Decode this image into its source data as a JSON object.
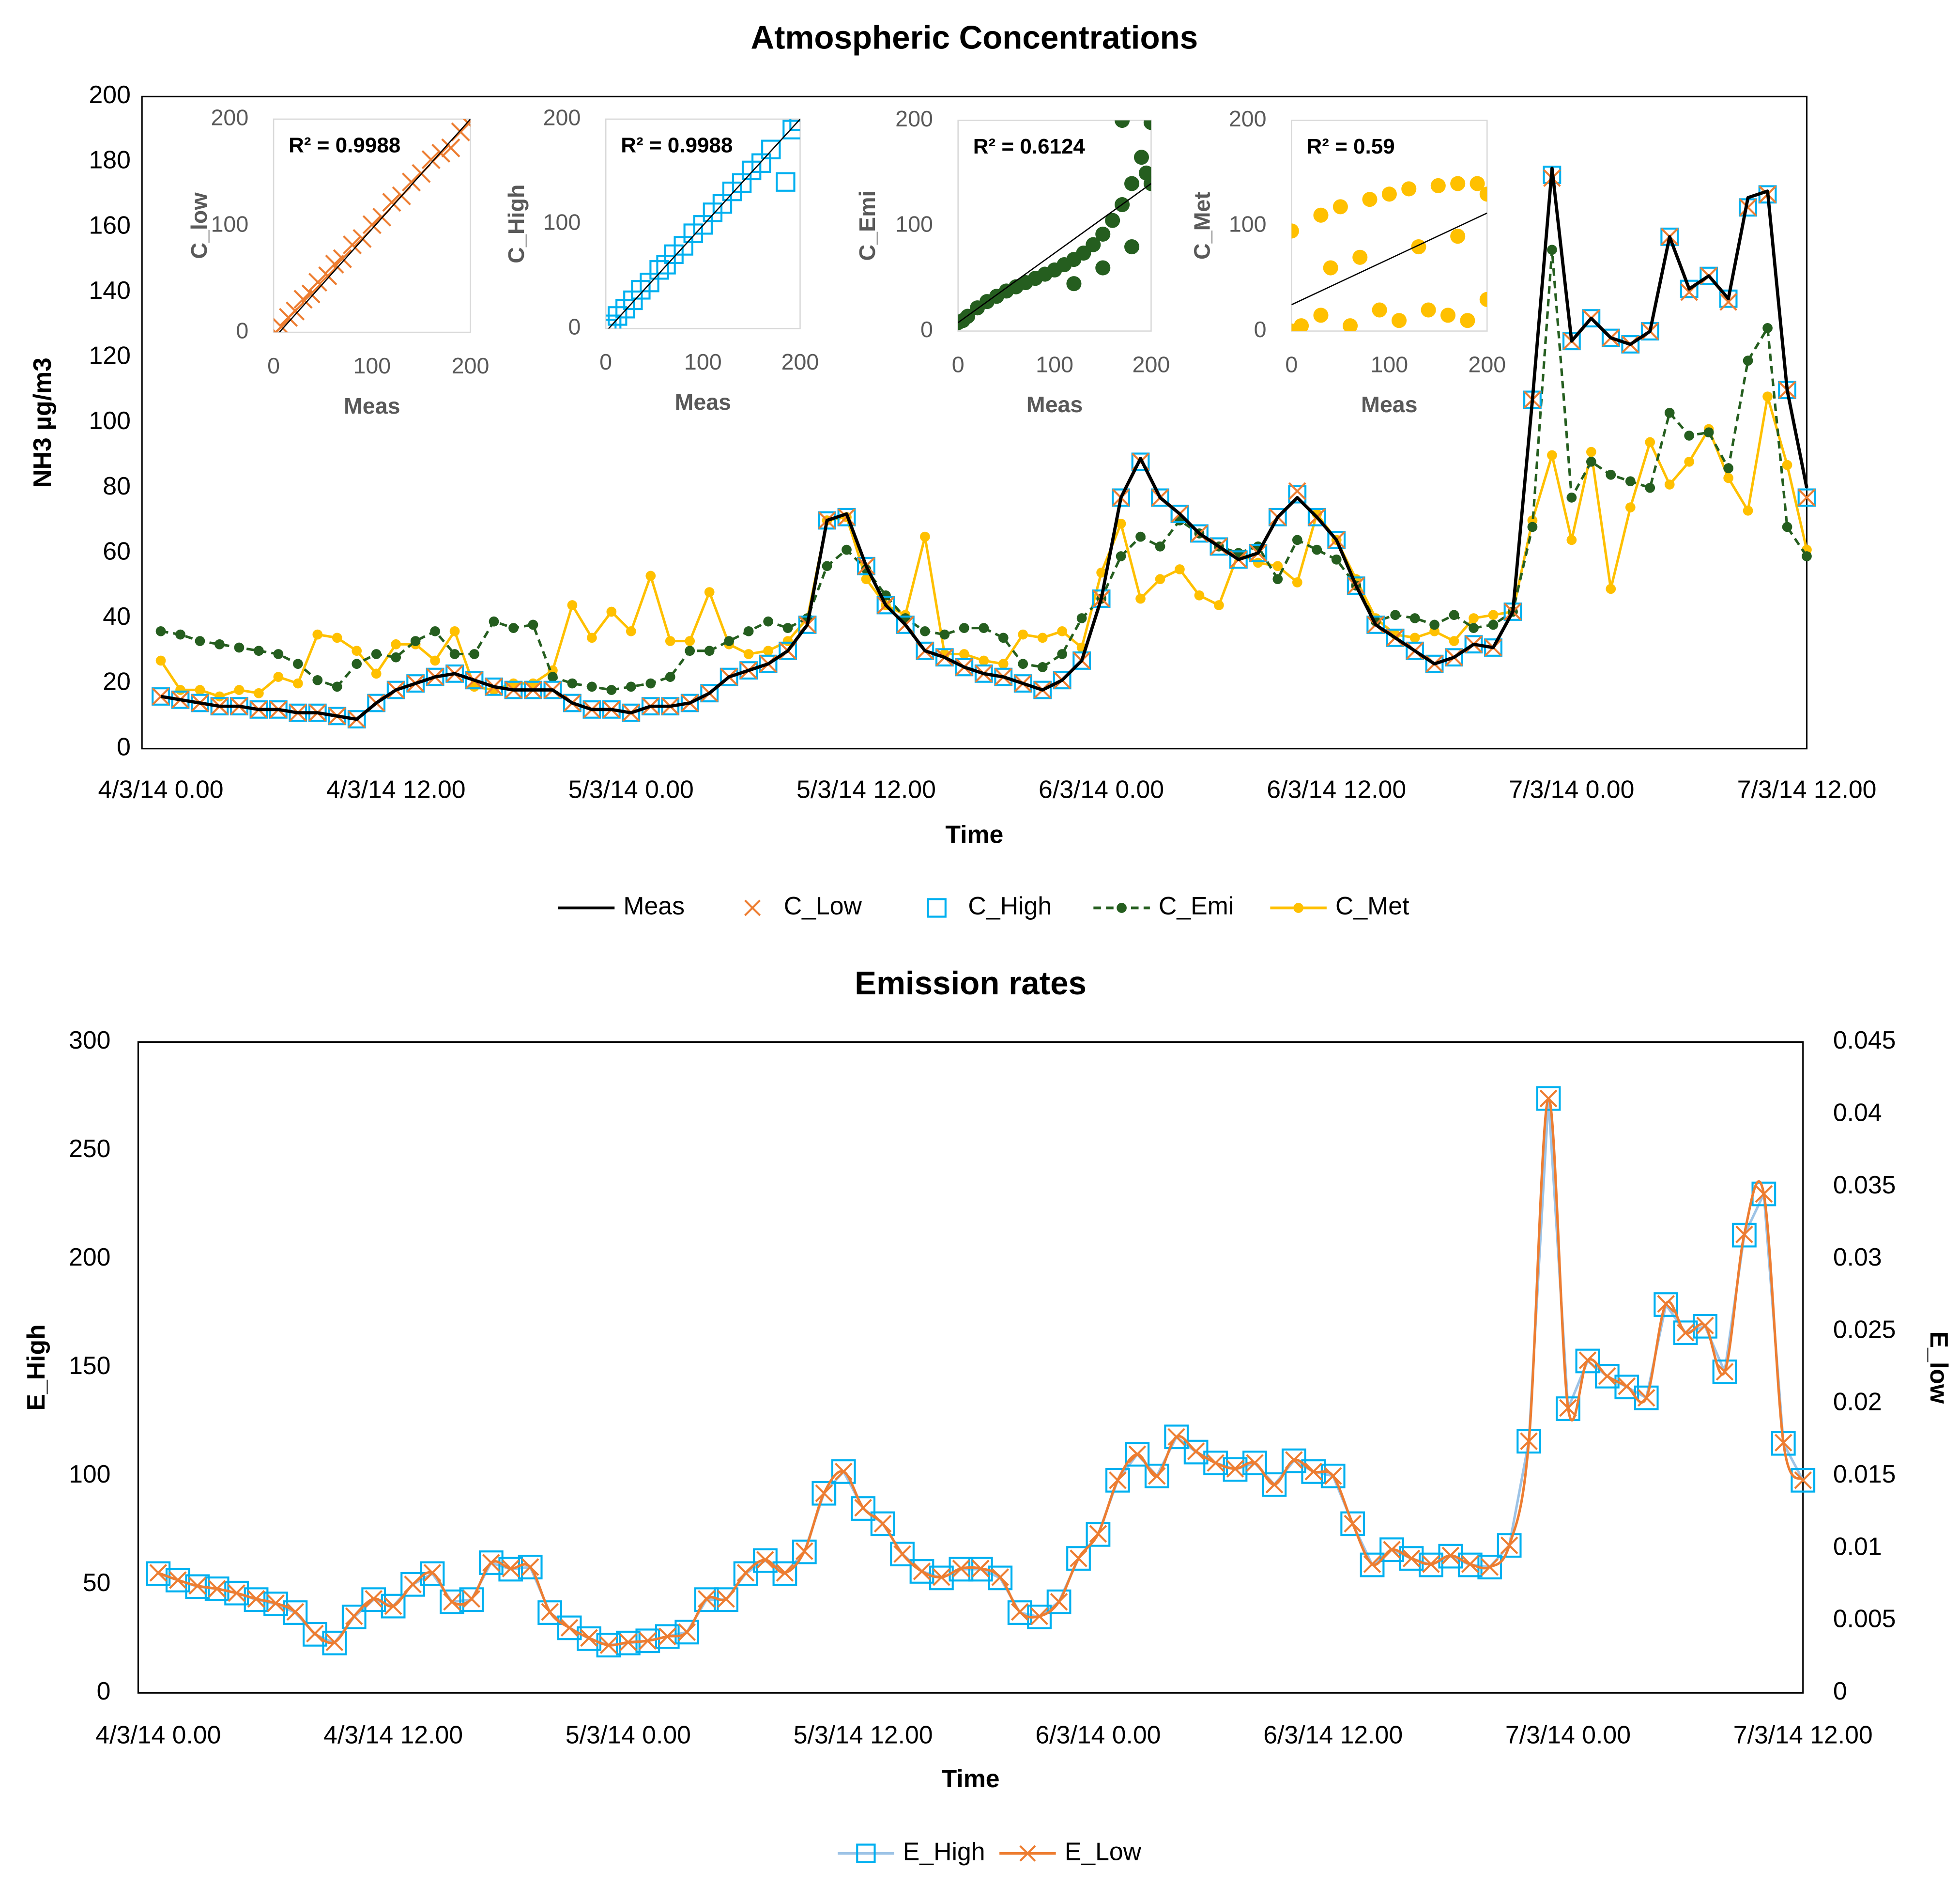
{
  "chart_data": [
    {
      "type": "line",
      "title": "Atmospheric Concentrations",
      "x_label": "Time",
      "y_label": "NH3 µg/m3",
      "categories": [
        "4/3/14 0.00",
        null,
        null,
        null,
        null,
        null,
        null,
        null,
        null,
        null,
        null,
        null,
        "4/3/14 12.00",
        null,
        null,
        null,
        null,
        null,
        null,
        null,
        null,
        null,
        null,
        null,
        "5/3/14 0.00",
        null,
        null,
        null,
        null,
        null,
        null,
        null,
        null,
        null,
        null,
        null,
        "5/3/14 12.00",
        null,
        null,
        null,
        null,
        null,
        null,
        null,
        null,
        null,
        null,
        null,
        "6/3/14 0.00",
        null,
        null,
        null,
        null,
        null,
        null,
        null,
        null,
        null,
        null,
        null,
        "6/3/14 12.00",
        null,
        null,
        null,
        null,
        null,
        null,
        null,
        null,
        null,
        null,
        null,
        "7/3/14 0.00",
        null,
        null,
        null,
        null,
        null,
        null,
        null,
        null,
        null,
        null,
        null,
        "7/3/14 12.00"
      ],
      "ylim": [
        0,
        200
      ],
      "yticks": [
        0,
        20,
        40,
        60,
        80,
        100,
        120,
        140,
        160,
        180,
        200
      ],
      "grid": false,
      "legend": "bottom",
      "series": [
        {
          "name": "Meas",
          "color": "#000000",
          "line": "solid",
          "marker": "none",
          "values": [
            16,
            15,
            14,
            13,
            13,
            12,
            12,
            11,
            11,
            10,
            9,
            14,
            18,
            20,
            22,
            23,
            21,
            19,
            18,
            18,
            18,
            14,
            12,
            12,
            11,
            13,
            13,
            14,
            17,
            22,
            24,
            26,
            30,
            38,
            70,
            72,
            56,
            44,
            38,
            30,
            28,
            25,
            23,
            22,
            20,
            18,
            21,
            27,
            46,
            77,
            89,
            77,
            72,
            66,
            62,
            58,
            60,
            71,
            77,
            71,
            64,
            50,
            38,
            34,
            30,
            26,
            28,
            32,
            31,
            42,
            107,
            178,
            125,
            132,
            126,
            124,
            128,
            157,
            141,
            145,
            138,
            169,
            171,
            110,
            80
          ]
        },
        {
          "name": "C_Low",
          "color": "#ED7D31",
          "line": "none",
          "marker": "x",
          "values": [
            16,
            15,
            14,
            13,
            13,
            12,
            12,
            11,
            11,
            10,
            9,
            14,
            18,
            20,
            22,
            23,
            21,
            19,
            18,
            18,
            18,
            14,
            12,
            12,
            11,
            13,
            13,
            14,
            17,
            22,
            24,
            26,
            30,
            38,
            70,
            71,
            56,
            44,
            38,
            30,
            28,
            25,
            23,
            22,
            20,
            18,
            21,
            27,
            46,
            77,
            88,
            77,
            72,
            66,
            62,
            58,
            60,
            71,
            79,
            71,
            64,
            50,
            38,
            34,
            30,
            26,
            28,
            32,
            31,
            42,
            107,
            175,
            125,
            132,
            126,
            124,
            128,
            157,
            140,
            145,
            137,
            166,
            170,
            110,
            77
          ]
        },
        {
          "name": "C_High",
          "color": "#00B0F0",
          "line": "none",
          "marker": "square",
          "values": [
            16,
            15,
            14,
            13,
            13,
            12,
            12,
            11,
            11,
            10,
            9,
            14,
            18,
            20,
            22,
            23,
            21,
            19,
            18,
            18,
            18,
            14,
            12,
            12,
            11,
            13,
            13,
            14,
            17,
            22,
            24,
            26,
            30,
            38,
            70,
            71,
            56,
            44,
            38,
            30,
            28,
            25,
            23,
            22,
            20,
            18,
            21,
            27,
            46,
            77,
            88,
            77,
            72,
            66,
            62,
            58,
            60,
            71,
            78,
            71,
            64,
            50,
            38,
            34,
            30,
            26,
            28,
            32,
            31,
            42,
            107,
            176,
            125,
            132,
            126,
            124,
            128,
            157,
            141,
            145,
            138,
            166,
            170,
            110,
            77
          ]
        },
        {
          "name": "C_Emi",
          "color": "#255E1F",
          "line": "dashed",
          "marker": "circle",
          "values": [
            36,
            35,
            33,
            32,
            31,
            30,
            29,
            26,
            21,
            19,
            26,
            29,
            28,
            33,
            36,
            29,
            29,
            39,
            37,
            38,
            22,
            20,
            19,
            18,
            19,
            20,
            22,
            30,
            30,
            33,
            36,
            39,
            37,
            40,
            56,
            61,
            55,
            47,
            40,
            36,
            35,
            37,
            37,
            34,
            26,
            25,
            29,
            40,
            46,
            59,
            65,
            62,
            70,
            66,
            62,
            60,
            62,
            52,
            64,
            61,
            58,
            50,
            39,
            41,
            40,
            38,
            41,
            37,
            38,
            42,
            68,
            153,
            77,
            88,
            84,
            82,
            80,
            103,
            96,
            97,
            86,
            119,
            129,
            68,
            59
          ]
        },
        {
          "name": "C_Met",
          "color": "#FFC000",
          "line": "solid",
          "marker": "circle",
          "values": [
            27,
            18,
            18,
            16,
            18,
            17,
            22,
            20,
            35,
            34,
            30,
            23,
            32,
            32,
            27,
            36,
            19,
            18,
            20,
            20,
            24,
            44,
            34,
            42,
            36,
            53,
            33,
            33,
            48,
            32,
            29,
            30,
            33,
            40,
            70,
            71,
            52,
            44,
            41,
            65,
            29,
            29,
            27,
            26,
            35,
            34,
            36,
            31,
            54,
            69,
            46,
            52,
            55,
            47,
            44,
            60,
            57,
            56,
            51,
            72,
            64,
            52,
            40,
            35,
            34,
            36,
            33,
            40,
            41,
            42,
            70,
            90,
            64,
            91,
            49,
            74,
            94,
            81,
            88,
            98,
            83,
            73,
            108,
            87,
            61
          ]
        }
      ]
    },
    {
      "type": "scatter",
      "x_label": "Meas",
      "y_label": "C_low",
      "annotation": "R² = 0.9988",
      "color": "#ED7D31",
      "marker": "x",
      "xlim": [
        0,
        200
      ],
      "ylim": [
        0,
        200
      ],
      "xticks": [
        0,
        100,
        200
      ],
      "yticks": [
        0,
        100,
        200
      ],
      "x": [
        2,
        8,
        15,
        22,
        30,
        38,
        45,
        55,
        62,
        70,
        80,
        90,
        100,
        110,
        120,
        130,
        140,
        150,
        160,
        170,
        180,
        190,
        198
      ],
      "y": [
        0,
        5,
        14,
        20,
        31,
        36,
        47,
        53,
        64,
        69,
        82,
        88,
        101,
        108,
        122,
        128,
        141,
        149,
        162,
        168,
        173,
        188,
        196
      ],
      "trendline": {
        "x": [
          0,
          200
        ],
        "y": [
          -6,
          200
        ]
      }
    },
    {
      "type": "scatter",
      "x_label": "Meas",
      "y_label": "C_High",
      "annotation": "R² = 0.9988",
      "color": "#00B0F0",
      "marker": "square",
      "xlim": [
        0,
        200
      ],
      "ylim": [
        0,
        200
      ],
      "xticks": [
        0,
        100,
        200
      ],
      "yticks": [
        0,
        100,
        200
      ],
      "x": [
        1,
        6,
        12,
        20,
        28,
        36,
        45,
        55,
        62,
        70,
        80,
        90,
        100,
        110,
        120,
        130,
        140,
        150,
        160,
        170,
        185,
        192,
        199
      ],
      "y": [
        0,
        4,
        12,
        19,
        27,
        37,
        44,
        56,
        61,
        71,
        79,
        91,
        99,
        111,
        119,
        131,
        139,
        151,
        158,
        171,
        140,
        190,
        198
      ],
      "trendline": {
        "x": [
          0,
          200
        ],
        "y": [
          -3,
          200
        ]
      }
    },
    {
      "type": "scatter",
      "x_label": "Meas",
      "y_label": "C_Emi",
      "annotation": "R² = 0.6124",
      "color": "#255E1F",
      "marker": "circle",
      "xlim": [
        0,
        200
      ],
      "ylim": [
        0,
        200
      ],
      "xticks": [
        0,
        100,
        200
      ],
      "yticks": [
        0,
        100,
        200
      ],
      "x": [
        0,
        5,
        10,
        20,
        30,
        40,
        50,
        60,
        70,
        80,
        90,
        100,
        110,
        120,
        130,
        140,
        150,
        160,
        170,
        180,
        190,
        200,
        120,
        150,
        180,
        195,
        170,
        200
      ],
      "y": [
        8,
        10,
        14,
        22,
        28,
        33,
        38,
        42,
        46,
        50,
        54,
        58,
        63,
        68,
        74,
        82,
        92,
        105,
        120,
        140,
        165,
        198,
        45,
        60,
        80,
        150,
        200,
        140
      ],
      "trendline": {
        "x": [
          0,
          200
        ],
        "y": [
          8,
          140
        ]
      }
    },
    {
      "type": "scatter",
      "x_label": "Meas",
      "y_label": "C_Met",
      "annotation": "R² = 0.59",
      "color": "#FFC000",
      "marker": "circle",
      "xlim": [
        0,
        200
      ],
      "ylim": [
        0,
        200
      ],
      "xticks": [
        0,
        100,
        200
      ],
      "yticks": [
        0,
        100,
        200
      ],
      "x": [
        0,
        0,
        10,
        30,
        30,
        50,
        60,
        80,
        90,
        100,
        110,
        120,
        140,
        150,
        160,
        170,
        180,
        190,
        200,
        200,
        40,
        70,
        130,
        170
      ],
      "y": [
        0,
        95,
        5,
        110,
        15,
        118,
        5,
        125,
        20,
        130,
        10,
        135,
        20,
        138,
        15,
        140,
        10,
        140,
        30,
        130,
        60,
        70,
        80,
        90
      ],
      "trendline": {
        "x": [
          0,
          200
        ],
        "y": [
          25,
          112
        ]
      }
    },
    {
      "type": "line",
      "title": "Emission rates",
      "x_label": "Time",
      "y_label": "E_High",
      "y2_label": "E_low",
      "categories": [
        "4/3/14 0.00",
        null,
        null,
        null,
        null,
        null,
        null,
        null,
        null,
        null,
        null,
        null,
        "4/3/14 12.00",
        null,
        null,
        null,
        null,
        null,
        null,
        null,
        null,
        null,
        null,
        null,
        "5/3/14 0.00",
        null,
        null,
        null,
        null,
        null,
        null,
        null,
        null,
        null,
        null,
        null,
        "5/3/14 12.00",
        null,
        null,
        null,
        null,
        null,
        null,
        null,
        null,
        null,
        null,
        null,
        "6/3/14 0.00",
        null,
        null,
        null,
        null,
        null,
        null,
        null,
        null,
        null,
        null,
        null,
        "6/3/14 12.00",
        null,
        null,
        null,
        null,
        null,
        null,
        null,
        null,
        null,
        null,
        null,
        "7/3/14 0.00",
        null,
        null,
        null,
        null,
        null,
        null,
        null,
        null,
        null,
        null,
        null,
        "7/3/14 12.00"
      ],
      "ylim": [
        0,
        300
      ],
      "yticks": [
        0,
        50,
        100,
        150,
        200,
        250,
        300
      ],
      "y2lim": [
        0,
        0.045
      ],
      "y2ticks": [
        0,
        0.005,
        0.01,
        0.015,
        0.02,
        0.025,
        0.03,
        0.035,
        0.04,
        0.045
      ],
      "grid": false,
      "legend": "bottom",
      "series": [
        {
          "name": "E_High",
          "color": "#00B0F0",
          "line_color": "#9DC3E6",
          "line": "solid",
          "marker": "square",
          "values": [
            55,
            52,
            49,
            48,
            46,
            43,
            41,
            37,
            27,
            23,
            35,
            43,
            40,
            50,
            55,
            42,
            43,
            60,
            57,
            58,
            37,
            30,
            25,
            22,
            23,
            24,
            26,
            28,
            43,
            43,
            55,
            61,
            55,
            65,
            92,
            102,
            85,
            78,
            64,
            56,
            53,
            57,
            57,
            53,
            37,
            35,
            42,
            62,
            73,
            98,
            110,
            100,
            118,
            111,
            106,
            103,
            106,
            96,
            107,
            102,
            100,
            78,
            59,
            66,
            62,
            59,
            63,
            59,
            58,
            68,
            116,
            274,
            131,
            153,
            146,
            141,
            136,
            179,
            166,
            169,
            148,
            211,
            230,
            115,
            98
          ]
        },
        {
          "name": "E_Low",
          "color": "#ED7D31",
          "line": "smooth",
          "marker": "x",
          "axis": "y2",
          "values": [
            0.0083,
            0.0078,
            0.0074,
            0.0072,
            0.0069,
            0.0065,
            0.0062,
            0.0056,
            0.0041,
            0.0035,
            0.0053,
            0.0065,
            0.006,
            0.0075,
            0.0083,
            0.0063,
            0.0065,
            0.009,
            0.0086,
            0.0087,
            0.0056,
            0.0045,
            0.0038,
            0.0033,
            0.0035,
            0.0036,
            0.0039,
            0.0042,
            0.0065,
            0.0065,
            0.0083,
            0.0092,
            0.0083,
            0.0098,
            0.0138,
            0.0153,
            0.0128,
            0.0117,
            0.0096,
            0.0084,
            0.008,
            0.0086,
            0.0086,
            0.008,
            0.0056,
            0.0053,
            0.0063,
            0.0093,
            0.011,
            0.0147,
            0.0165,
            0.015,
            0.0177,
            0.0167,
            0.0159,
            0.0155,
            0.0159,
            0.0144,
            0.0161,
            0.0153,
            0.015,
            0.0117,
            0.0089,
            0.0099,
            0.0093,
            0.0089,
            0.0095,
            0.0089,
            0.0087,
            0.0102,
            0.0174,
            0.0411,
            0.0197,
            0.023,
            0.0219,
            0.0212,
            0.0204,
            0.0269,
            0.0249,
            0.0254,
            0.0222,
            0.0317,
            0.0345,
            0.0173,
            0.0147
          ]
        }
      ]
    }
  ]
}
